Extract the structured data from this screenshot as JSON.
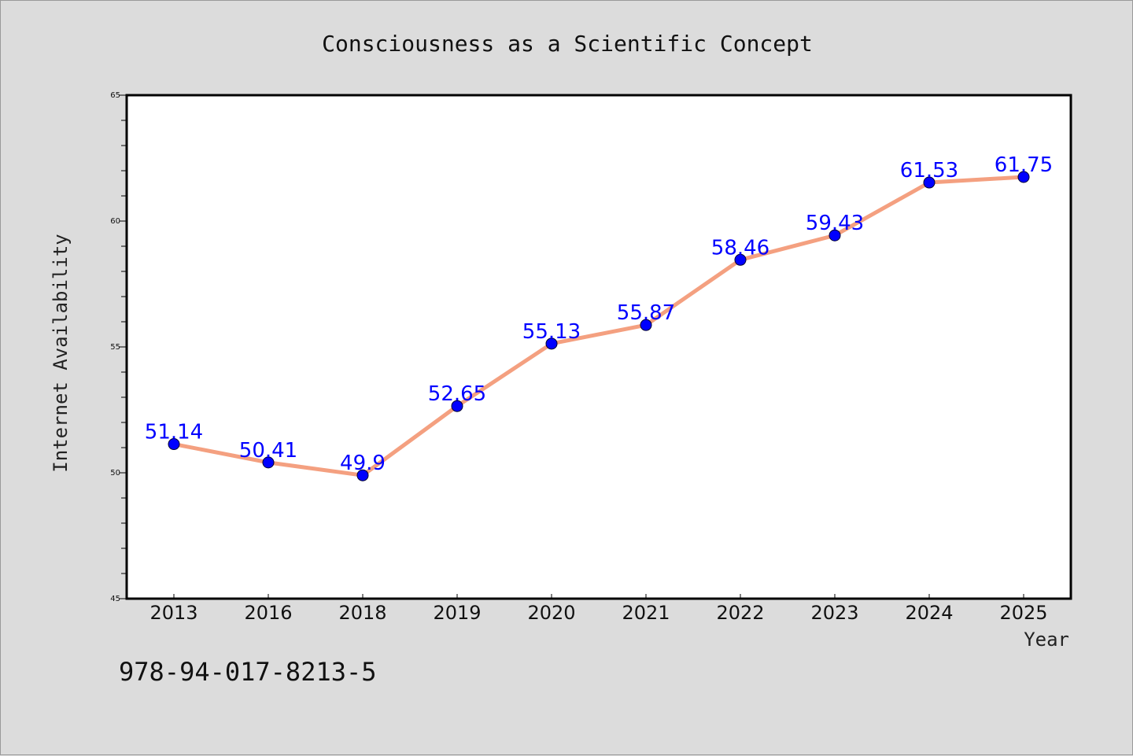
{
  "chart_data": {
    "type": "line",
    "title": "Consciousness as a Scientific Concept",
    "xlabel": "Year",
    "ylabel": "Internet Availability",
    "categories": [
      "2013",
      "2016",
      "2018",
      "2019",
      "2020",
      "2021",
      "2022",
      "2023",
      "2024",
      "2025"
    ],
    "series": [
      {
        "values": [
          51.14,
          50.41,
          49.9,
          52.65,
          55.13,
          55.87,
          58.46,
          59.43,
          61.53,
          61.75
        ]
      }
    ],
    "data_labels": [
      "51.14",
      "50.41",
      "49.9",
      "52.65",
      "55.13",
      "55.87",
      "58.46",
      "59.43",
      "61.53",
      "61.75"
    ],
    "ylim": [
      45,
      65
    ],
    "yticks": [
      "45",
      "50",
      "55",
      "60",
      "65"
    ],
    "grid": false,
    "legend": "none"
  },
  "footer_code": "978-94-017-8213-5",
  "colors": {
    "background": "#dcdcdc",
    "plot_area": "#ffffff",
    "line": "#f4a080",
    "marker": "#0000ff",
    "data_label": "#0000ff"
  }
}
